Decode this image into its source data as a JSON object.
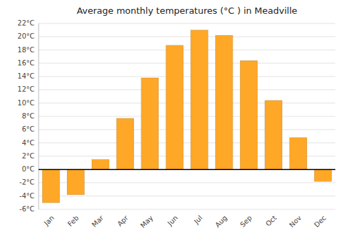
{
  "chart_data": {
    "type": "bar",
    "title": "Average monthly temperatures (°C ) in Meadville",
    "categories": [
      "Jan",
      "Feb",
      "Mar",
      "Apr",
      "May",
      "Jun",
      "Jul",
      "Aug",
      "Sep",
      "Oct",
      "Nov",
      "Dec"
    ],
    "values": [
      -5.0,
      -3.8,
      1.5,
      7.7,
      13.8,
      18.7,
      21.0,
      20.2,
      16.4,
      10.4,
      4.8,
      -1.8
    ],
    "color": "#FFA726",
    "ylim": [
      -6,
      22
    ],
    "yticks": [
      {
        "value": -6,
        "label": "-6°C"
      },
      {
        "value": -4,
        "label": "-4°C"
      },
      {
        "value": -2,
        "label": "-2°C"
      },
      {
        "value": 0,
        "label": "0°C"
      },
      {
        "value": 2,
        "label": "2°C"
      },
      {
        "value": 4,
        "label": "4°C"
      },
      {
        "value": 6,
        "label": "6°C"
      },
      {
        "value": 8,
        "label": "8°C"
      },
      {
        "value": 10,
        "label": "10°C"
      },
      {
        "value": 12,
        "label": "12°C"
      },
      {
        "value": 14,
        "label": "14°C"
      },
      {
        "value": 16,
        "label": "16°C"
      },
      {
        "value": 18,
        "label": "18°C"
      },
      {
        "value": 20,
        "label": "20°C"
      },
      {
        "value": 22,
        "label": "22°C"
      }
    ],
    "grid": true
  }
}
